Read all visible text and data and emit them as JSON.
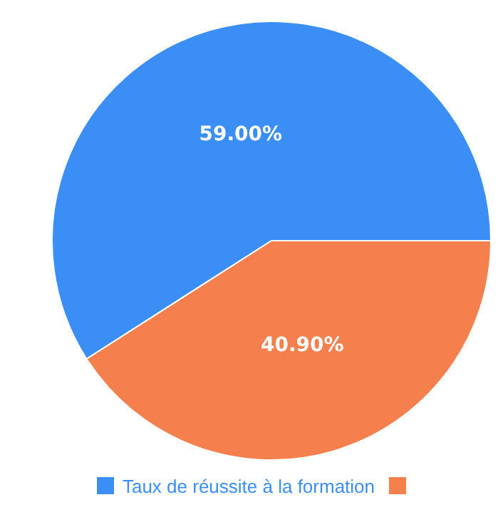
{
  "chart_data": {
    "type": "pie",
    "categories": [
      "Taux de réussite à la formation",
      null
    ],
    "values": [
      59,
      40.9
    ],
    "colors": [
      "#3a8ef6",
      "#f5804d"
    ],
    "value_labels": [
      "59.00%",
      "40.90%"
    ],
    "legend": "bottom"
  }
}
